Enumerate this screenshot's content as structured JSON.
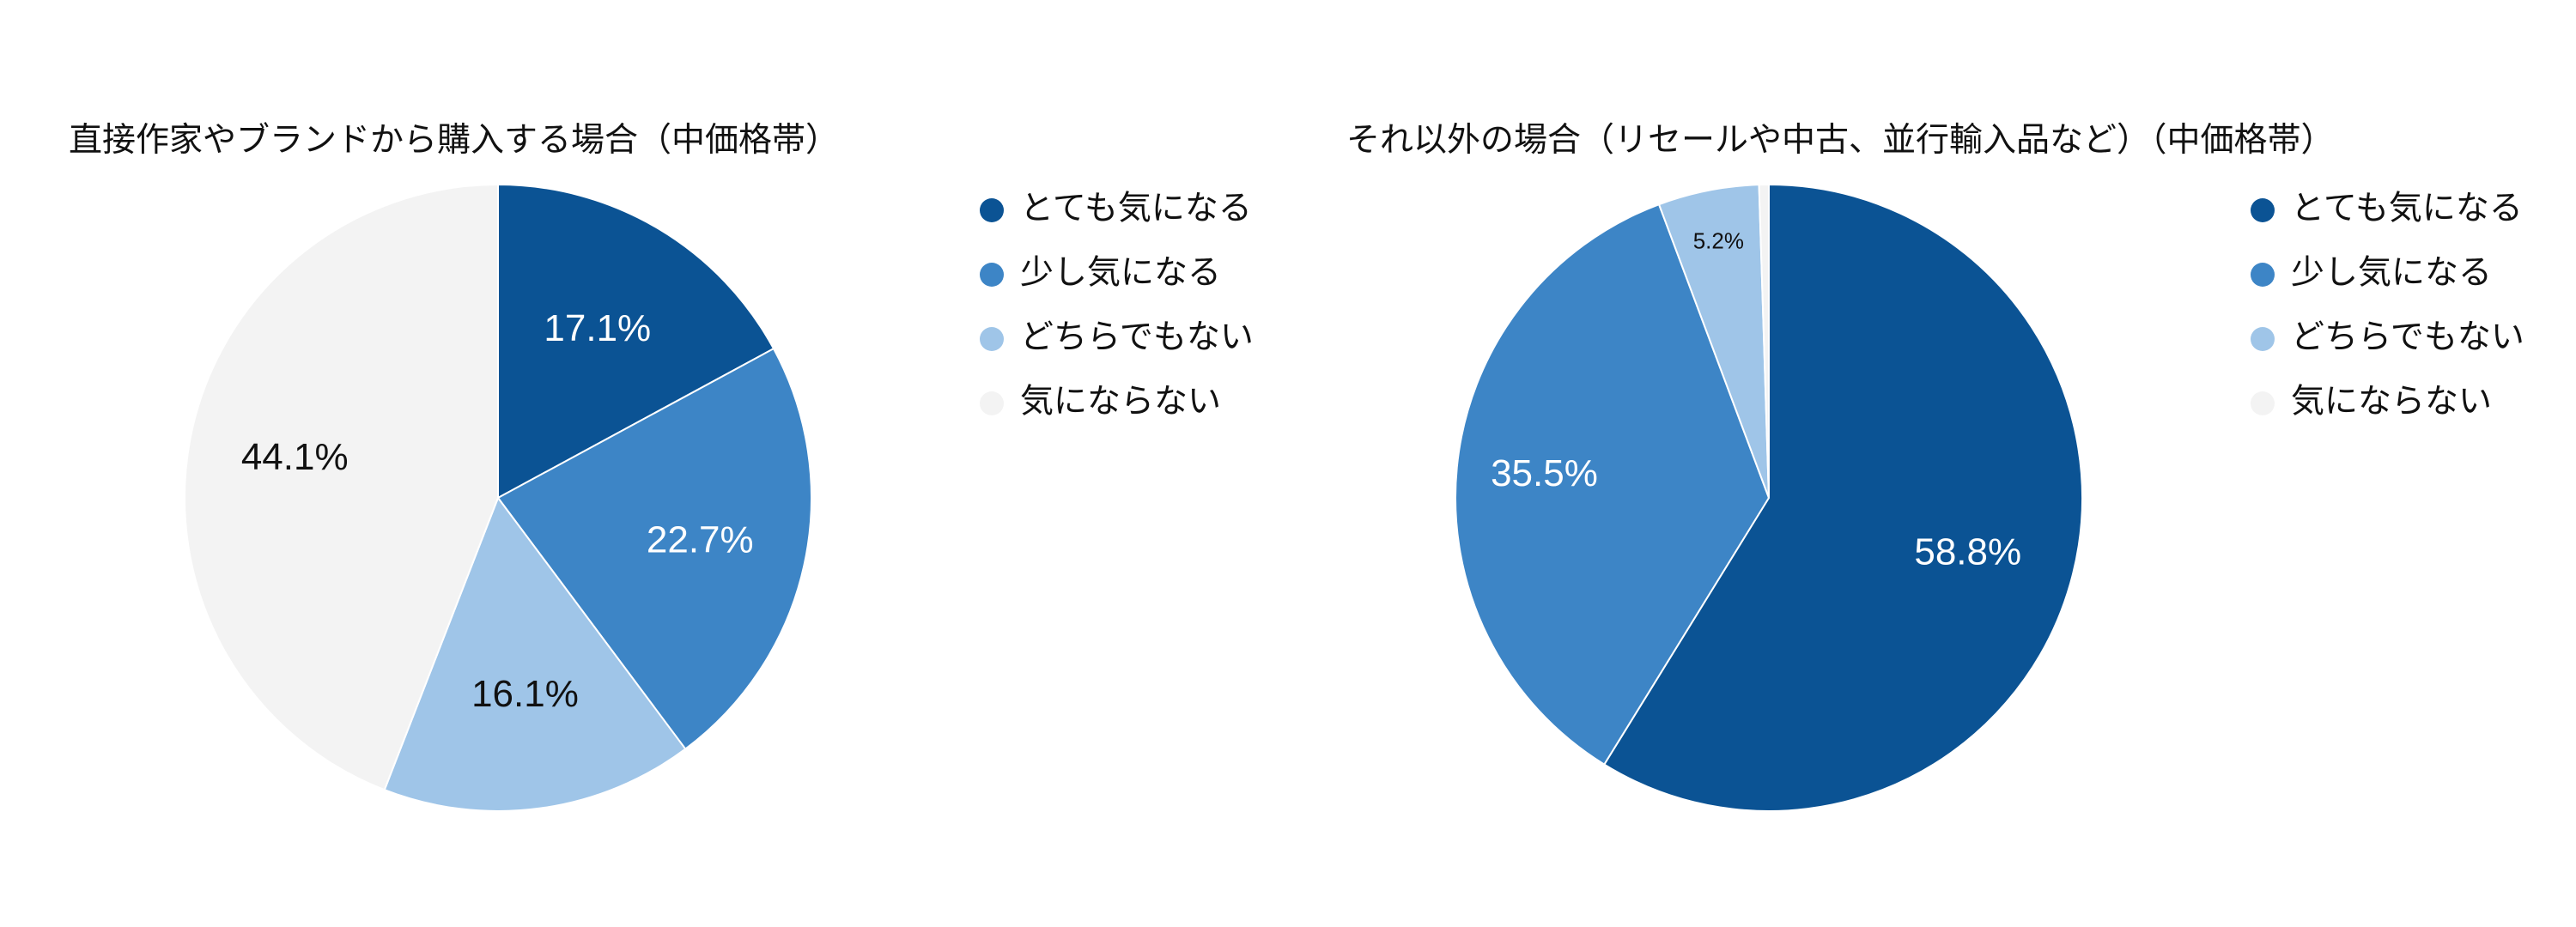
{
  "chart_data": [
    {
      "type": "pie",
      "title": "直接作家やブランドから購入する場合（中価格帯）",
      "categories": [
        "とても気になる",
        "少し気になる",
        "どちらでもない",
        "気にならない"
      ],
      "values": [
        17.1,
        22.7,
        16.1,
        44.1
      ],
      "labels": [
        "17.1%",
        "22.7%",
        "16.1%",
        "44.1%"
      ],
      "colors": [
        "#0b5394",
        "#3d85c6",
        "#9fc5e8",
        "#f3f3f3"
      ],
      "label_colors": [
        "#ffffff",
        "#ffffff",
        "#111111",
        "#111111"
      ],
      "legend_position": "right"
    },
    {
      "type": "pie",
      "title": "それ以外の場合（リセールや中古、並行輸入品など）（中価格帯）",
      "categories": [
        "とても気になる",
        "少し気になる",
        "どちらでもない",
        "気にならない"
      ],
      "values": [
        58.8,
        35.5,
        5.2,
        0.5
      ],
      "labels": [
        "58.8%",
        "35.5%",
        "5.2%",
        ""
      ],
      "colors": [
        "#0b5394",
        "#3d85c6",
        "#9fc5e8",
        "#f3f3f3"
      ],
      "label_colors": [
        "#ffffff",
        "#ffffff",
        "#111111",
        "#111111"
      ],
      "legend_position": "right"
    }
  ]
}
